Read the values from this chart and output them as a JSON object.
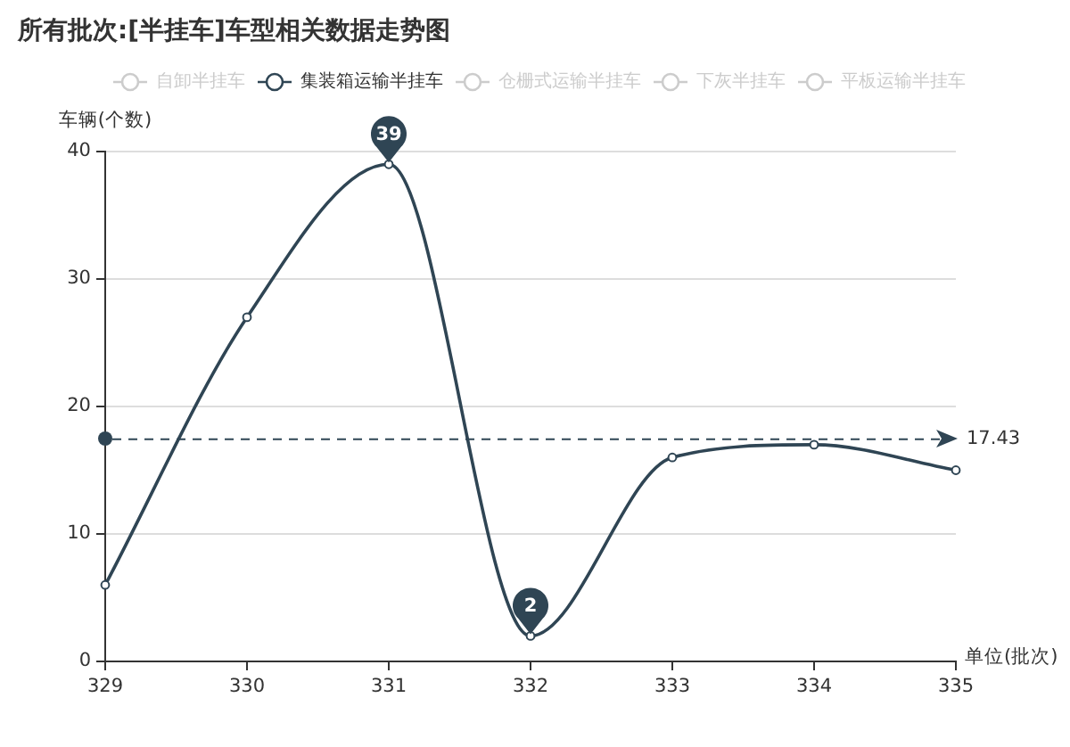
{
  "chart_data": {
    "type": "line",
    "title": "所有批次:[半挂车]车型相关数据走势图",
    "xlabel": "单位(批次)",
    "ylabel": "车辆(个数)",
    "categories": [
      "329",
      "330",
      "331",
      "332",
      "333",
      "334",
      "335"
    ],
    "series": [
      {
        "name": "自卸半挂车",
        "color": "#cccccc",
        "values": [
          null,
          null,
          null,
          null,
          null,
          null,
          null
        ]
      },
      {
        "name": "集装箱运输半挂车",
        "color": "#2f4554",
        "values": [
          6,
          27,
          39,
          2,
          16,
          17,
          15
        ],
        "value_labels": [
          null,
          null,
          "39",
          "2",
          null,
          null,
          null
        ]
      },
      {
        "name": "仓栅式运输半挂车",
        "color": "#cccccc",
        "values": [
          null,
          null,
          null,
          null,
          null,
          null,
          null
        ]
      },
      {
        "name": "下灰半挂车",
        "color": "#cccccc",
        "values": [
          null,
          null,
          null,
          null,
          null,
          null,
          null
        ]
      },
      {
        "name": "平板运输半挂车",
        "color": "#cccccc",
        "values": [
          null,
          null,
          null,
          null,
          null,
          null,
          null
        ]
      }
    ],
    "ylim": [
      0,
      40
    ],
    "yticks": [
      0,
      10,
      20,
      30,
      40
    ],
    "grid": "y",
    "legend": "top",
    "marker": "circle",
    "line_style": "solid",
    "ref_lines": [
      {
        "axis": "y",
        "value": 17.43,
        "label": "17.43",
        "line_style": "dashed",
        "color": "#2f4554"
      }
    ]
  }
}
